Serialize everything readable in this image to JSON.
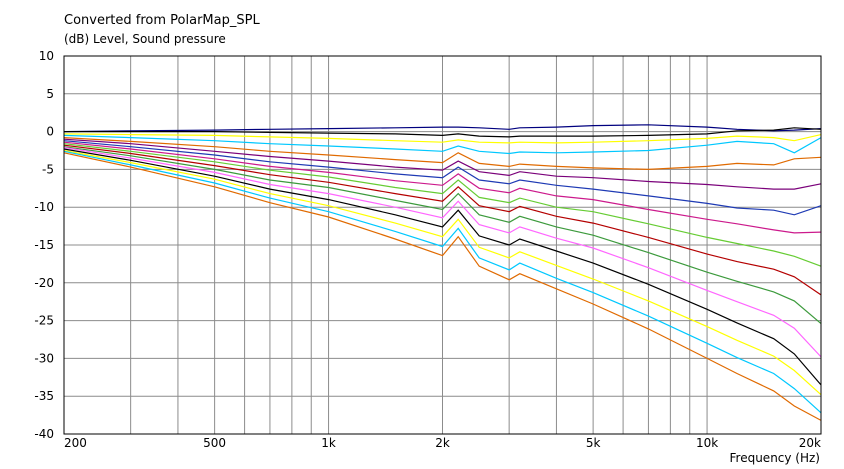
{
  "chart_data": {
    "type": "line",
    "title": "Converted from PolarMap_SPL",
    "ylabel": "(dB)  Level, Sound pressure",
    "xlabel": "Frequency  (Hz)",
    "xscale": "log",
    "xlim": [
      200,
      20000
    ],
    "ylim": [
      -40,
      10
    ],
    "grid": true,
    "legend": "none",
    "y_ticks": [
      10,
      5,
      0,
      -5,
      -10,
      -15,
      -20,
      -25,
      -30,
      -35,
      -40
    ],
    "x_ticks": [
      {
        "value": 200,
        "label": "200"
      },
      {
        "value": 500,
        "label": "500"
      },
      {
        "value": 1000,
        "label": "1k"
      },
      {
        "value": 2000,
        "label": "2k"
      },
      {
        "value": 5000,
        "label": "5k"
      },
      {
        "value": 10000,
        "label": "10k"
      },
      {
        "value": 20000,
        "label": "20k"
      }
    ],
    "x": [
      200,
      300,
      500,
      700,
      1000,
      1500,
      2000,
      2200,
      2500,
      3000,
      3200,
      4000,
      5000,
      7000,
      10000,
      12000,
      15000,
      17000,
      20000
    ],
    "series": [
      {
        "color": "#00007f",
        "values": [
          0,
          0.1,
          0.2,
          0.3,
          0.4,
          0.5,
          0.6,
          0.6,
          0.5,
          0.3,
          0.5,
          0.6,
          0.8,
          0.9,
          0.6,
          0.3,
          0.1,
          0.2,
          0.4
        ]
      },
      {
        "color": "#000000",
        "values": [
          0,
          0,
          0,
          -0.1,
          -0.2,
          -0.3,
          -0.5,
          -0.3,
          -0.6,
          -0.7,
          -0.6,
          -0.6,
          -0.6,
          -0.5,
          -0.3,
          0.1,
          0.2,
          0.5,
          0.3
        ]
      },
      {
        "color": "#ffff00",
        "values": [
          -0.3,
          -0.4,
          -0.5,
          -0.7,
          -0.9,
          -1.2,
          -1.4,
          -1.1,
          -1.4,
          -1.5,
          -1.4,
          -1.5,
          -1.4,
          -1.2,
          -0.9,
          -0.6,
          -0.8,
          -1.2,
          -0.4
        ]
      },
      {
        "color": "#00c8ff",
        "values": [
          -0.5,
          -0.8,
          -1.2,
          -1.6,
          -1.9,
          -2.3,
          -2.6,
          -1.9,
          -2.6,
          -2.9,
          -2.7,
          -2.8,
          -2.7,
          -2.5,
          -1.8,
          -1.3,
          -1.6,
          -2.8,
          -0.8
        ]
      },
      {
        "color": "#e06a00",
        "values": [
          -0.8,
          -1.3,
          -2.0,
          -2.6,
          -3.1,
          -3.7,
          -4.1,
          -2.8,
          -4.2,
          -4.6,
          -4.3,
          -4.6,
          -4.8,
          -5.0,
          -4.6,
          -4.2,
          -4.4,
          -3.6,
          -3.4
        ]
      },
      {
        "color": "#7a007a",
        "values": [
          -1.0,
          -1.6,
          -2.6,
          -3.3,
          -3.9,
          -4.7,
          -5.1,
          -3.9,
          -5.3,
          -5.8,
          -5.3,
          -5.9,
          -6.1,
          -6.6,
          -7.0,
          -7.3,
          -7.6,
          -7.6,
          -6.9
        ]
      },
      {
        "color": "#1e3ab4",
        "values": [
          -1.2,
          -2.0,
          -3.1,
          -4.0,
          -4.7,
          -5.6,
          -6.1,
          -4.7,
          -6.4,
          -6.9,
          -6.4,
          -7.1,
          -7.6,
          -8.5,
          -9.5,
          -10.1,
          -10.4,
          -11.0,
          -9.8
        ]
      },
      {
        "color": "#cc1a8c",
        "values": [
          -1.4,
          -2.3,
          -3.6,
          -4.6,
          -5.4,
          -6.5,
          -7.1,
          -5.6,
          -7.5,
          -8.1,
          -7.5,
          -8.5,
          -9.0,
          -10.3,
          -11.6,
          -12.2,
          -13.0,
          -13.4,
          -13.3
        ]
      },
      {
        "color": "#66cc33",
        "values": [
          -1.6,
          -2.6,
          -4.0,
          -5.1,
          -6.0,
          -7.4,
          -8.2,
          -6.4,
          -8.7,
          -9.4,
          -8.8,
          -10.0,
          -10.6,
          -12.2,
          -14.0,
          -14.8,
          -15.8,
          -16.5,
          -17.8
        ]
      },
      {
        "color": "#b40000",
        "values": [
          -1.8,
          -2.9,
          -4.5,
          -5.7,
          -6.7,
          -8.2,
          -9.2,
          -7.3,
          -9.8,
          -10.6,
          -9.9,
          -11.2,
          -12.1,
          -14.0,
          -16.2,
          -17.2,
          -18.2,
          -19.2,
          -21.6
        ]
      },
      {
        "color": "#3c9a3c",
        "values": [
          -2.0,
          -3.2,
          -5.0,
          -6.4,
          -7.4,
          -9.1,
          -10.3,
          -8.2,
          -11.0,
          -12.0,
          -11.2,
          -12.6,
          -13.7,
          -16.0,
          -18.6,
          -19.8,
          -21.2,
          -22.4,
          -25.4
        ]
      },
      {
        "color": "#ff66ff",
        "values": [
          -2.1,
          -3.5,
          -5.4,
          -7.0,
          -8.2,
          -10.0,
          -11.4,
          -9.2,
          -12.3,
          -13.4,
          -12.6,
          -14.1,
          -15.4,
          -18.0,
          -21.0,
          -22.5,
          -24.3,
          -26.0,
          -29.8
        ]
      },
      {
        "color": "#000000",
        "values": [
          -2.3,
          -3.8,
          -5.9,
          -7.6,
          -9.0,
          -11.0,
          -12.6,
          -10.4,
          -13.8,
          -15.0,
          -14.2,
          -15.8,
          -17.4,
          -20.2,
          -23.5,
          -25.3,
          -27.4,
          -29.4,
          -33.5
        ]
      },
      {
        "color": "#ffff00",
        "values": [
          -2.5,
          -4.1,
          -6.3,
          -8.2,
          -9.8,
          -12.1,
          -13.9,
          -11.6,
          -15.3,
          -16.7,
          -15.9,
          -17.7,
          -19.5,
          -22.4,
          -25.8,
          -27.6,
          -29.7,
          -31.6,
          -34.8
        ]
      },
      {
        "color": "#00c8ff",
        "values": [
          -2.6,
          -4.4,
          -6.8,
          -8.8,
          -10.6,
          -13.2,
          -15.2,
          -12.8,
          -16.7,
          -18.3,
          -17.4,
          -19.4,
          -21.3,
          -24.4,
          -28.0,
          -29.9,
          -32.0,
          -34.0,
          -37.2
        ]
      },
      {
        "color": "#e06a00",
        "values": [
          -2.8,
          -4.7,
          -7.3,
          -9.4,
          -11.3,
          -14.2,
          -16.4,
          -13.9,
          -17.8,
          -19.6,
          -18.8,
          -20.8,
          -22.8,
          -26.1,
          -30.0,
          -32.0,
          -34.3,
          -36.3,
          -38.2
        ]
      }
    ]
  }
}
